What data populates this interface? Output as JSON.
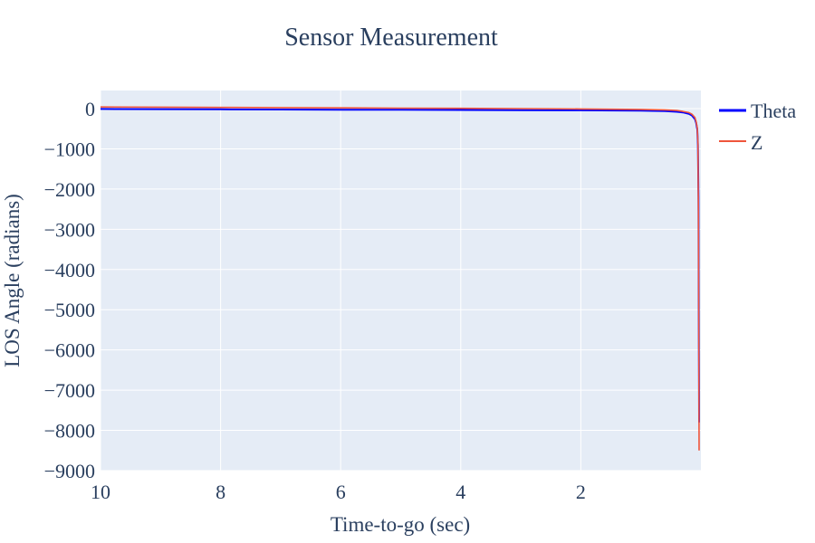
{
  "chart_data": {
    "type": "line",
    "title": "Sensor Measurement",
    "xlabel": "Time-to-go (sec)",
    "ylabel": "LOS Angle (radians)",
    "x_reversed": true,
    "xlim": [
      10,
      0
    ],
    "ylim": [
      -9000,
      450
    ],
    "x_ticks": [
      "10",
      "8",
      "6",
      "4",
      "2"
    ],
    "x_tick_values": [
      10,
      8,
      6,
      4,
      2
    ],
    "y_ticks": [
      "0",
      "−1000",
      "−2000",
      "−3000",
      "−4000",
      "−5000",
      "−6000",
      "−7000",
      "−8000",
      "−9000"
    ],
    "y_tick_values": [
      0,
      -1000,
      -2000,
      -3000,
      -4000,
      -5000,
      -6000,
      -7000,
      -8000,
      -9000
    ],
    "grid": true,
    "legend_position": "top-right",
    "colors": {
      "plot_bg": "#e5ecf6",
      "grid": "#ffffff",
      "text": "#2a3f5f",
      "paper": "#ffffff"
    },
    "series": [
      {
        "name": "Theta",
        "color": "#0000ff",
        "x": [
          10,
          9,
          8,
          7,
          6,
          5,
          4,
          3,
          2,
          1,
          0.6,
          0.4,
          0.3,
          0.2,
          0.15,
          0.1,
          0.08,
          0.06,
          0.05,
          0.04,
          0.03
        ],
        "y": [
          -10,
          -14,
          -18,
          -22,
          -26,
          -30,
          -34,
          -38,
          -42,
          -50,
          -62,
          -78,
          -95,
          -130,
          -170,
          -260,
          -350,
          -520,
          -900,
          -2200,
          -7800
        ]
      },
      {
        "name": "Z",
        "color": "#ef553b",
        "x": [
          10,
          9,
          8,
          7,
          6,
          5,
          4,
          3,
          2,
          1,
          0.6,
          0.4,
          0.3,
          0.2,
          0.15,
          0.1,
          0.08,
          0.06,
          0.05,
          0.04,
          0.03
        ],
        "y": [
          40,
          35,
          30,
          24,
          18,
          12,
          6,
          0,
          -8,
          -20,
          -32,
          -48,
          -70,
          -100,
          -140,
          -220,
          -320,
          -480,
          -850,
          -2600,
          -8500
        ]
      }
    ]
  }
}
